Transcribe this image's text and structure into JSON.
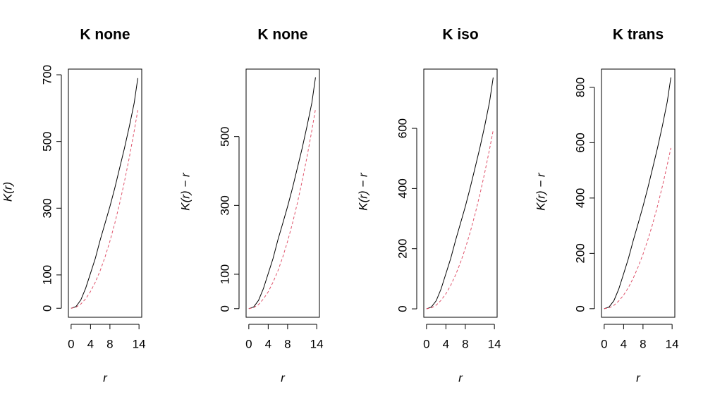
{
  "chart_data": [
    {
      "type": "line",
      "title": "K none",
      "xlabel": "r",
      "ylabel": "K(r)",
      "x": [
        0,
        1,
        2,
        3,
        4,
        5,
        6,
        7,
        8,
        9,
        10,
        11,
        12,
        13,
        13.75
      ],
      "series": [
        {
          "color": "#000000",
          "linestyle": "solid",
          "values": [
            0,
            5,
            25,
            60,
            105,
            150,
            205,
            255,
            305,
            360,
            420,
            480,
            545,
            615,
            690
          ]
        },
        {
          "color": "#df536b",
          "linestyle": "dashed",
          "values": [
            0,
            3.1,
            12.6,
            28.3,
            50.3,
            78.5,
            113.1,
            153.9,
            201.1,
            254.5,
            314.2,
            380.1,
            452.4,
            530.9,
            594
          ]
        }
      ],
      "xlim": [
        -0.56,
        14.56
      ],
      "xticks": [
        0,
        4,
        8,
        14
      ],
      "ylim": [
        -27,
        717
      ],
      "yticks": [
        0,
        100,
        300,
        500,
        700
      ]
    },
    {
      "type": "line",
      "title": "K none",
      "xlabel": "r",
      "ylabel": "K(r) − r",
      "x": [
        0,
        1,
        2,
        3,
        4,
        5,
        6,
        7,
        8,
        9,
        10,
        11,
        12,
        13,
        13.75
      ],
      "series": [
        {
          "color": "#000000",
          "linestyle": "solid",
          "values": [
            0,
            5,
            24,
            58,
            102,
            146,
            200,
            248,
            297,
            350,
            408,
            466,
            530,
            598,
            672
          ]
        },
        {
          "color": "#df536b",
          "linestyle": "dashed",
          "values": [
            0,
            3,
            12,
            28,
            49,
            77,
            110,
            150,
            196,
            248,
            306,
            371,
            441,
            518,
            580
          ]
        }
      ],
      "xlim": [
        -0.56,
        14.56
      ],
      "xticks": [
        0,
        4,
        8,
        14
      ],
      "ylim": [
        -25,
        696
      ],
      "yticks": [
        0,
        100,
        300,
        500
      ]
    },
    {
      "type": "line",
      "title": "K iso",
      "xlabel": "r",
      "ylabel": "K(r) − r",
      "x": [
        0,
        1,
        2,
        3,
        4,
        5,
        6,
        7,
        8,
        9,
        10,
        11,
        12,
        13,
        13.75
      ],
      "series": [
        {
          "color": "#000000",
          "linestyle": "solid",
          "values": [
            0,
            6,
            27,
            66,
            117,
            168,
            228,
            284,
            340,
            402,
            468,
            535,
            608,
            688,
            769
          ]
        },
        {
          "color": "#df536b",
          "linestyle": "dashed",
          "values": [
            0,
            3.1,
            12.6,
            28.3,
            50.3,
            78.5,
            113.1,
            153.9,
            201.1,
            254.5,
            314.2,
            380.1,
            452.4,
            530.9,
            594
          ]
        }
      ],
      "xlim": [
        -0.56,
        14.56
      ],
      "xticks": [
        0,
        4,
        8,
        14
      ],
      "ylim": [
        -28,
        797
      ],
      "yticks": [
        0,
        200,
        400,
        600
      ]
    },
    {
      "type": "line",
      "title": "K trans",
      "xlabel": "r",
      "ylabel": "K(r) − r",
      "x": [
        0,
        1,
        2,
        3,
        4,
        5,
        6,
        7,
        8,
        9,
        10,
        11,
        12,
        13,
        13.75
      ],
      "series": [
        {
          "color": "#000000",
          "linestyle": "solid",
          "values": [
            0,
            6,
            29,
            71,
            126,
            182,
            247,
            308,
            370,
            437,
            509,
            582,
            661,
            748,
            836
          ]
        },
        {
          "color": "#df536b",
          "linestyle": "dashed",
          "values": [
            0,
            3,
            12,
            28,
            49,
            77,
            111,
            151,
            197,
            249,
            307,
            372,
            443,
            520,
            581
          ]
        }
      ],
      "xlim": [
        -0.56,
        14.56
      ],
      "xticks": [
        0,
        4,
        8,
        14
      ],
      "ylim": [
        -31,
        866
      ],
      "yticks": [
        0,
        200,
        400,
        600,
        800
      ]
    }
  ]
}
